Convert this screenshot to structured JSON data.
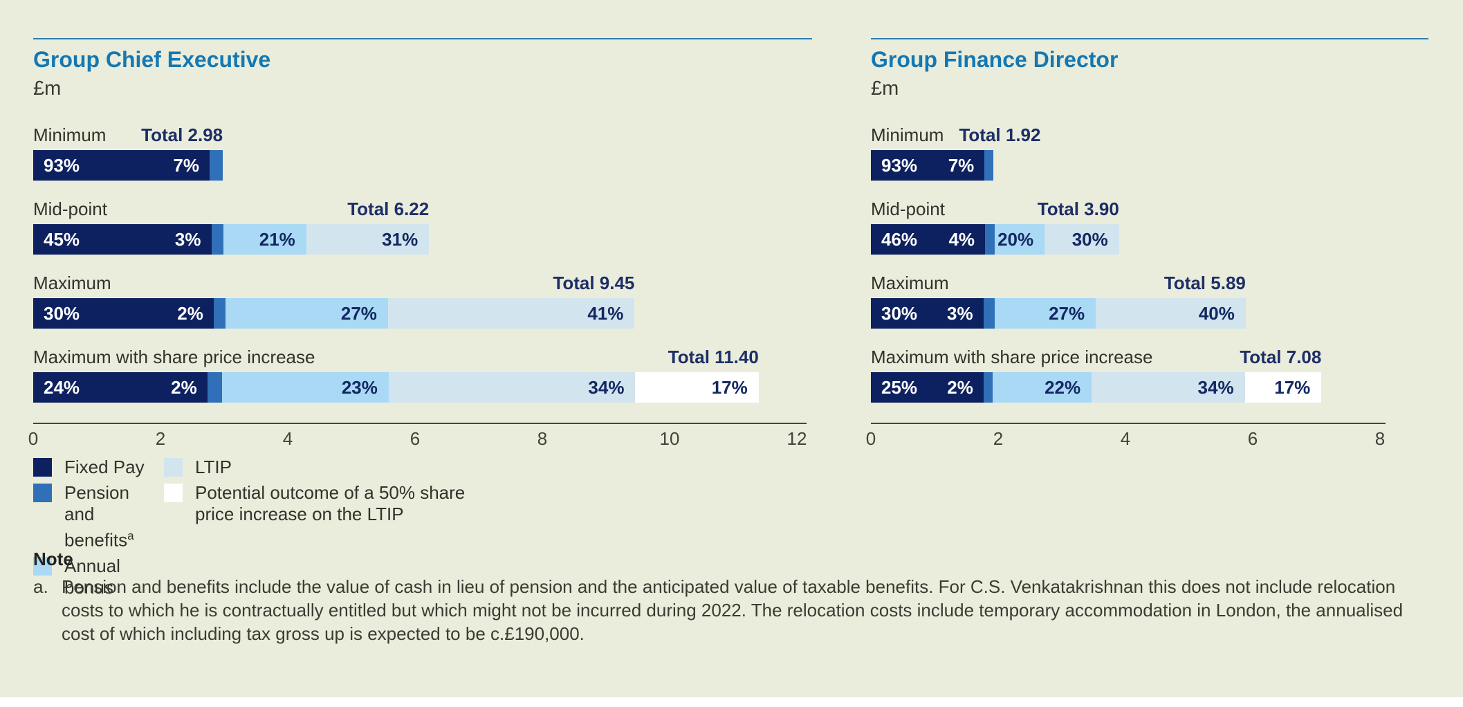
{
  "colors": {
    "background": "#eaeddb",
    "accent_rule": "#2d7cb0",
    "title_blue": "#1478b2",
    "fixed_pay": "#0d2160",
    "pension": "#3070b8",
    "annual_bonus": "#a9d9f4",
    "ltip": "#d2e4ee",
    "share_increase": "#ffffff",
    "total_text": "#1d2e67",
    "pct_on_light": "#132862",
    "body_text": "#32322c",
    "axis_line": "#44443d"
  },
  "chart_data": [
    {
      "type": "bar",
      "orientation": "horizontal",
      "title": "Group Chief Executive",
      "unit_label": "£m",
      "xlim": [
        0,
        12
      ],
      "ticks": [
        "0",
        "2",
        "4",
        "6",
        "8",
        "10",
        "12"
      ],
      "grid": false,
      "legend_position": "below-left",
      "rows": [
        {
          "label": "Minimum",
          "total": 2.98,
          "total_label": "Total 2.98",
          "segments": [
            {
              "key": "fixed_pay",
              "pct": 93,
              "pct_label": "93%"
            },
            {
              "key": "pension",
              "pct": 7,
              "pct_label": "7%"
            }
          ]
        },
        {
          "label": "Mid-point",
          "total": 6.22,
          "total_label": "Total 6.22",
          "segments": [
            {
              "key": "fixed_pay",
              "pct": 45,
              "pct_label": "45%"
            },
            {
              "key": "pension",
              "pct": 3,
              "pct_label": "3%"
            },
            {
              "key": "annual_bonus",
              "pct": 21,
              "pct_label": "21%"
            },
            {
              "key": "ltip",
              "pct": 31,
              "pct_label": "31%"
            }
          ]
        },
        {
          "label": "Maximum",
          "total": 9.45,
          "total_label": "Total 9.45",
          "segments": [
            {
              "key": "fixed_pay",
              "pct": 30,
              "pct_label": "30%"
            },
            {
              "key": "pension",
              "pct": 2,
              "pct_label": "2%"
            },
            {
              "key": "annual_bonus",
              "pct": 27,
              "pct_label": "27%"
            },
            {
              "key": "ltip",
              "pct": 41,
              "pct_label": "41%"
            }
          ]
        },
        {
          "label": "Maximum with share price increase",
          "total": 11.4,
          "total_label": "Total 11.40",
          "segments": [
            {
              "key": "fixed_pay",
              "pct": 24,
              "pct_label": "24%"
            },
            {
              "key": "pension",
              "pct": 2,
              "pct_label": "2%"
            },
            {
              "key": "annual_bonus",
              "pct": 23,
              "pct_label": "23%"
            },
            {
              "key": "ltip",
              "pct": 34,
              "pct_label": "34%"
            },
            {
              "key": "share_increase",
              "pct": 17,
              "pct_label": "17%"
            }
          ]
        }
      ]
    },
    {
      "type": "bar",
      "orientation": "horizontal",
      "title": "Group Finance Director",
      "unit_label": "£m",
      "xlim": [
        0,
        8
      ],
      "ticks": [
        "0",
        "2",
        "4",
        "6",
        "8"
      ],
      "grid": false,
      "rows": [
        {
          "label": "Minimum",
          "total": 1.92,
          "total_label": "Total 1.92",
          "segments": [
            {
              "key": "fixed_pay",
              "pct": 93,
              "pct_label": "93%"
            },
            {
              "key": "pension",
              "pct": 7,
              "pct_label": "7%"
            }
          ]
        },
        {
          "label": "Mid-point",
          "total": 3.9,
          "total_label": "Total 3.90",
          "segments": [
            {
              "key": "fixed_pay",
              "pct": 46,
              "pct_label": "46%"
            },
            {
              "key": "pension",
              "pct": 4,
              "pct_label": "4%"
            },
            {
              "key": "annual_bonus",
              "pct": 20,
              "pct_label": "20%"
            },
            {
              "key": "ltip",
              "pct": 30,
              "pct_label": "30%"
            }
          ]
        },
        {
          "label": "Maximum",
          "total": 5.89,
          "total_label": "Total 5.89",
          "segments": [
            {
              "key": "fixed_pay",
              "pct": 30,
              "pct_label": "30%"
            },
            {
              "key": "pension",
              "pct": 3,
              "pct_label": "3%"
            },
            {
              "key": "annual_bonus",
              "pct": 27,
              "pct_label": "27%"
            },
            {
              "key": "ltip",
              "pct": 40,
              "pct_label": "40%"
            }
          ]
        },
        {
          "label": "Maximum with share price increase",
          "total": 7.08,
          "total_label": "Total 7.08",
          "segments": [
            {
              "key": "fixed_pay",
              "pct": 25,
              "pct_label": "25%"
            },
            {
              "key": "pension",
              "pct": 2,
              "pct_label": "2%"
            },
            {
              "key": "annual_bonus",
              "pct": 22,
              "pct_label": "22%"
            },
            {
              "key": "ltip",
              "pct": 34,
              "pct_label": "34%"
            },
            {
              "key": "share_increase",
              "pct": 17,
              "pct_label": "17%"
            }
          ]
        }
      ]
    }
  ],
  "legend": {
    "items": [
      {
        "key": "fixed_pay",
        "label": "Fixed Pay",
        "sup": "",
        "column": 1
      },
      {
        "key": "pension",
        "label": "Pension and benefits",
        "sup": "a",
        "column": 1
      },
      {
        "key": "annual_bonus",
        "label": "Annual bonus",
        "sup": "",
        "column": 1
      },
      {
        "key": "ltip",
        "label": "LTIP",
        "sup": "",
        "column": 2
      },
      {
        "key": "share_increase",
        "label": "Potential outcome of a 50% share price increase on the LTIP",
        "sup": "",
        "column": 2
      }
    ]
  },
  "note": {
    "heading": "Note",
    "items": [
      {
        "marker": "a.",
        "text": "Pension and benefits include the value of cash in lieu of pension and the anticipated value of taxable benefits. For C.S. Venkatakrishnan this does not include relocation costs to which he is contractually entitled but which might not be incurred during 2022. The relocation costs include temporary accommodation in London, the annualised cost of which including tax gross up is expected to be c.£190,000."
      }
    ]
  }
}
